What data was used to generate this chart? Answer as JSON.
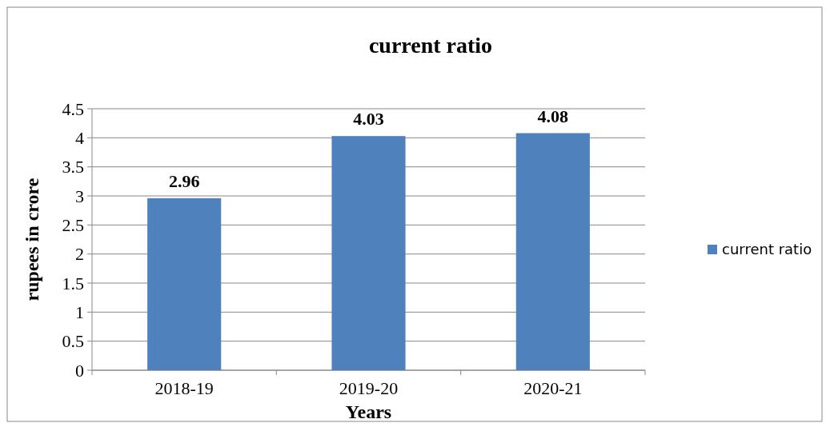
{
  "chart_data": {
    "type": "bar",
    "title": "current ratio",
    "xlabel": "Years",
    "ylabel": "rupees in crore",
    "categories": [
      "2018-19",
      "2019-20",
      "2020-21"
    ],
    "series": [
      {
        "name": "current ratio",
        "color": "#4f81bd",
        "values": [
          2.96,
          4.03,
          4.08
        ]
      }
    ],
    "ylim": [
      0,
      4.5
    ],
    "yticks": [
      0,
      0.5,
      1,
      1.5,
      2,
      2.5,
      3,
      3.5,
      4,
      4.5
    ],
    "grid": "y",
    "legend": "right",
    "data_labels": true
  }
}
